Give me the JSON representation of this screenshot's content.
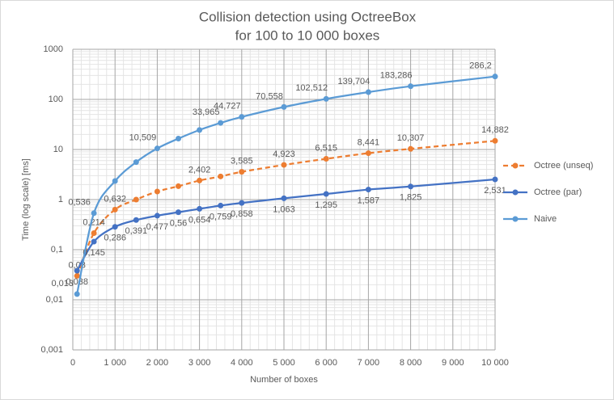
{
  "chart_data": {
    "type": "line",
    "title_lines": [
      "Collision detection using OctreeBox",
      "for 100 to 10 000 boxes"
    ],
    "x_label": "Number  of boxes",
    "y_label": "Time (log scale) [ms]",
    "y_log": true,
    "grid": true,
    "minor_grid": true,
    "legend": "right",
    "xlim": [
      0,
      10000
    ],
    "xticks": [
      0,
      {
        "value": 1000,
        "label": "1 000"
      },
      {
        "value": 2000,
        "label": "2 000"
      },
      {
        "value": 3000,
        "label": "3 000"
      },
      {
        "value": 4000,
        "label": "4 000"
      },
      {
        "value": 5000,
        "label": "5 000"
      },
      {
        "value": 6000,
        "label": "6 000"
      },
      {
        "value": 7000,
        "label": "7 000"
      },
      {
        "value": 8000,
        "label": "8 000"
      },
      {
        "value": 9000,
        "label": "9 000"
      },
      {
        "value": 10000,
        "label": "10 000"
      }
    ],
    "ylim": [
      0.001,
      1000
    ],
    "yticks": [
      {
        "value": 0.001,
        "label": "0,001"
      },
      {
        "value": 0.01,
        "label": "0,01"
      },
      {
        "value": 0.1,
        "label": "0,1"
      },
      1,
      10,
      100,
      1000
    ],
    "x": [
      100,
      500,
      1000,
      1500,
      2000,
      2500,
      3000,
      3500,
      4000,
      5000,
      6000,
      7000,
      8000,
      10000
    ],
    "series": [
      {
        "name": "Octree (unseq)",
        "color": "#ed7d31",
        "dashed": true,
        "values": [
          0.03,
          0.214,
          0.632,
          1.0,
          1.45,
          1.85,
          2.402,
          2.9,
          3.585,
          4.923,
          6.515,
          8.441,
          10.307,
          14.882
        ],
        "value_labels": [
          "0,03",
          "0,214",
          "0,632",
          null,
          null,
          null,
          "2,402",
          null,
          "3,585",
          "4,923",
          "6,515",
          "8,441",
          "10,307",
          "14,882"
        ]
      },
      {
        "name": "Octree (par)",
        "color": "#4472c4",
        "dashed": false,
        "values": [
          0.038,
          0.145,
          0.286,
          0.391,
          0.477,
          0.56,
          0.654,
          0.759,
          0.858,
          1.063,
          1.295,
          1.587,
          1.825,
          2.531
        ],
        "value_labels": [
          "0,038",
          "0,145",
          "0,286",
          "0,391",
          "0,477",
          "0,56",
          "0,654",
          "0,759",
          "0,858",
          "1,063",
          "1,295",
          "1,587",
          "1,825",
          "2,531"
        ]
      },
      {
        "name": "Naive",
        "color": "#5b9bd5",
        "dashed": false,
        "values": [
          0.013,
          0.536,
          2.35,
          5.6,
          10.509,
          16.5,
          24.5,
          33.965,
          44.727,
          70.558,
          102.512,
          139.704,
          183.286,
          286.2
        ],
        "value_labels": [
          "0,013",
          "0,536",
          null,
          null,
          "10,509",
          null,
          null,
          "33,965",
          "44,727",
          "70,558",
          "102,512",
          "139,704",
          "183,286",
          "286,2"
        ]
      }
    ]
  }
}
